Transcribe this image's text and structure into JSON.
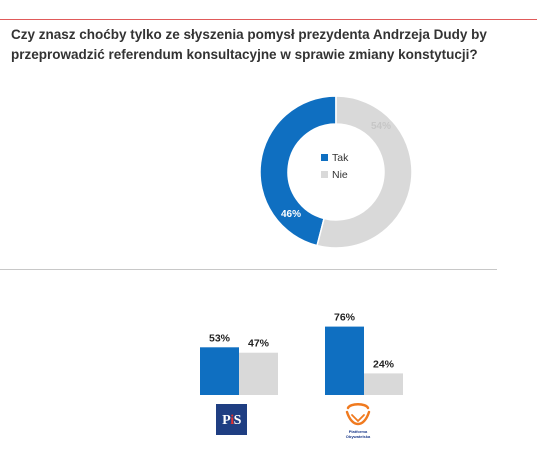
{
  "title_lines": [
    "Czy znasz choćby tylko ze słyszenia pomysł prezydenta Andrzeja Dudy by",
    "przeprowadzić referendum konsultacyjne w sprawie zmiany konstytucji?"
  ],
  "colors": {
    "tak": "#0f6fc1",
    "nie": "#d9d9d9",
    "nie_label": "#c6c6c6",
    "rule": "#e05a5a"
  },
  "chart_data": [
    {
      "type": "pie",
      "subtype": "donut",
      "categories": [
        "Tak",
        "Nie"
      ],
      "values": [
        46,
        54
      ],
      "labels": [
        "46%",
        "54%"
      ],
      "legend": {
        "placement": "center",
        "entries": [
          "Tak",
          "Nie"
        ]
      }
    },
    {
      "type": "bar",
      "categories": [
        "PiS",
        "Platforma Obywatelska"
      ],
      "series": [
        {
          "values": [
            53,
            76
          ],
          "labels": [
            "53%",
            "76%"
          ]
        },
        {
          "values": [
            47,
            24
          ],
          "labels": [
            "47%",
            "24%"
          ]
        }
      ],
      "ylim": [
        0,
        100
      ],
      "grid": false
    }
  ],
  "logos": {
    "pis": {
      "p": "P",
      "i": "i",
      "s": "S"
    },
    "po": {
      "line1": "Platforma",
      "line2": "Obywatelska"
    }
  }
}
